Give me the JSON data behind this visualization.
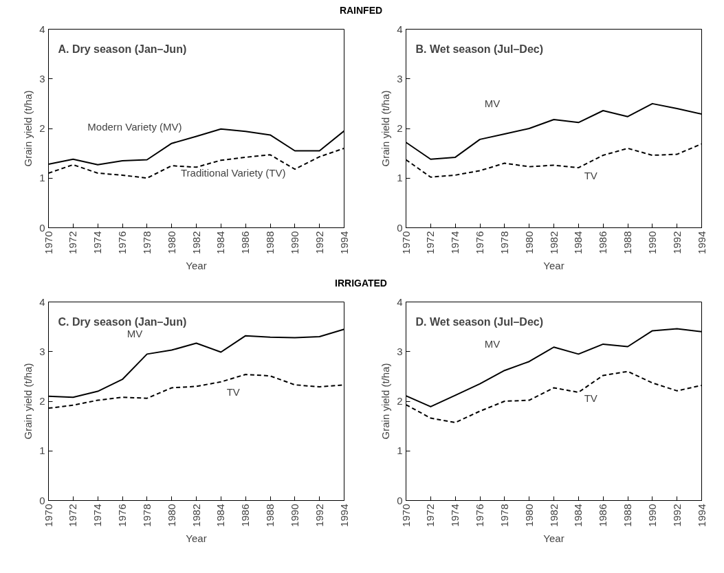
{
  "chart_data": [
    {
      "type": "line",
      "title": "A. Dry season (Jan–Jun)",
      "annotations": [
        "RAINFED"
      ],
      "xlabel": "Year",
      "ylabel": "Grain yield (t/ha)",
      "x": [
        1970,
        1972,
        1974,
        1976,
        1978,
        1980,
        1982,
        1984,
        1986,
        1988,
        1990,
        1992,
        1994
      ],
      "series": [
        {
          "name": "Modern Variety (MV)",
          "color": "#000000",
          "line_style": "solid",
          "values": [
            1.28,
            1.38,
            1.27,
            1.35,
            1.37,
            1.7,
            1.84,
            1.99,
            1.94,
            1.87,
            1.55,
            1.55,
            1.95
          ]
        },
        {
          "name": "Traditional Variety (TV)",
          "color": "#000000",
          "line_style": "dashed",
          "values": [
            1.1,
            1.27,
            1.1,
            1.06,
            1.0,
            1.25,
            1.22,
            1.36,
            1.42,
            1.47,
            1.18,
            1.43,
            1.6
          ]
        }
      ],
      "xlim": [
        1970,
        1994
      ],
      "xticks": [
        1970,
        1972,
        1974,
        1976,
        1978,
        1980,
        1982,
        1984,
        1986,
        1988,
        1990,
        1992,
        1994
      ],
      "ylim": [
        0,
        4
      ],
      "yticks": [
        0,
        1,
        2,
        3,
        4
      ],
      "grid": false,
      "marker": "none"
    },
    {
      "type": "line",
      "title": "B. Wet season (Jul–Dec)",
      "xlabel": "Year",
      "ylabel": "Grain yield (t/ha)",
      "x": [
        1970,
        1972,
        1974,
        1976,
        1978,
        1980,
        1982,
        1984,
        1986,
        1988,
        1990,
        1992,
        1994
      ],
      "series": [
        {
          "name": "MV",
          "color": "#000000",
          "line_style": "solid",
          "values": [
            1.72,
            1.38,
            1.42,
            1.78,
            1.89,
            2.0,
            2.18,
            2.12,
            2.36,
            2.24,
            2.5,
            2.4,
            2.29
          ]
        },
        {
          "name": "TV",
          "color": "#000000",
          "line_style": "dashed",
          "values": [
            1.37,
            1.02,
            1.06,
            1.15,
            1.3,
            1.23,
            1.26,
            1.21,
            1.46,
            1.6,
            1.46,
            1.48,
            1.69
          ]
        }
      ],
      "xlim": [
        1970,
        1994
      ],
      "xticks": [
        1970,
        1972,
        1974,
        1976,
        1978,
        1980,
        1982,
        1984,
        1986,
        1988,
        1990,
        1992,
        1994
      ],
      "ylim": [
        0,
        4
      ],
      "yticks": [
        0,
        1,
        2,
        3,
        4
      ],
      "grid": false,
      "marker": "none"
    },
    {
      "type": "line",
      "title": "C. Dry season (Jan–Jun)",
      "annotations": [
        "IRRIGATED"
      ],
      "xlabel": "Year",
      "ylabel": "Grain yield (t/ha)",
      "x": [
        1970,
        1972,
        1974,
        1976,
        1978,
        1980,
        1982,
        1984,
        1986,
        1988,
        1990,
        1992,
        1994
      ],
      "series": [
        {
          "name": "MV",
          "color": "#000000",
          "line_style": "solid",
          "values": [
            2.1,
            2.08,
            2.2,
            2.44,
            2.95,
            3.03,
            3.17,
            2.99,
            3.32,
            3.29,
            3.28,
            3.3,
            3.45
          ]
        },
        {
          "name": "TV",
          "color": "#000000",
          "line_style": "dashed",
          "values": [
            1.86,
            1.92,
            2.02,
            2.08,
            2.06,
            2.27,
            2.3,
            2.39,
            2.54,
            2.51,
            2.33,
            2.29,
            2.33
          ]
        }
      ],
      "xlim": [
        1970,
        1994
      ],
      "xticks": [
        1970,
        1972,
        1974,
        1976,
        1978,
        1980,
        1982,
        1984,
        1986,
        1988,
        1990,
        1992,
        1994
      ],
      "ylim": [
        0,
        4
      ],
      "yticks": [
        0,
        1,
        2,
        3,
        4
      ],
      "grid": false,
      "marker": "none"
    },
    {
      "type": "line",
      "title": "D. Wet season (Jul–Dec)",
      "xlabel": "Year",
      "ylabel": "Grain yield (t/ha)",
      "x": [
        1970,
        1972,
        1974,
        1976,
        1978,
        1980,
        1982,
        1984,
        1986,
        1988,
        1990,
        1992,
        1994
      ],
      "series": [
        {
          "name": "MV",
          "color": "#000000",
          "line_style": "solid",
          "values": [
            2.11,
            1.89,
            2.12,
            2.35,
            2.62,
            2.8,
            3.09,
            2.95,
            3.15,
            3.1,
            3.42,
            3.46,
            3.4
          ]
        },
        {
          "name": "TV",
          "color": "#000000",
          "line_style": "dashed",
          "values": [
            1.93,
            1.66,
            1.57,
            1.8,
            2.0,
            2.02,
            2.27,
            2.18,
            2.52,
            2.6,
            2.37,
            2.21,
            2.32
          ]
        }
      ],
      "xlim": [
        1970,
        1994
      ],
      "xticks": [
        1970,
        1972,
        1974,
        1976,
        1978,
        1980,
        1982,
        1984,
        1986,
        1988,
        1990,
        1992,
        1994
      ],
      "ylim": [
        0,
        4
      ],
      "yticks": [
        0,
        1,
        2,
        3,
        4
      ],
      "grid": false,
      "marker": "none"
    }
  ]
}
